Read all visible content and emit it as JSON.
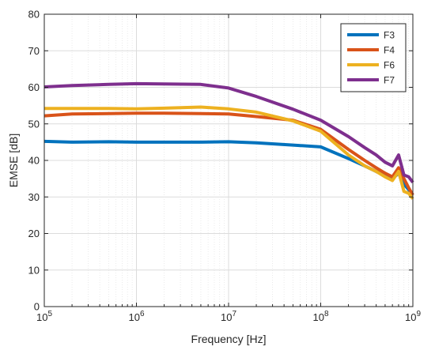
{
  "chart_data": {
    "type": "line",
    "title": "",
    "xlabel": "Frequency [Hz]",
    "ylabel": "EMSE [dB]",
    "xscale": "log",
    "xlim": [
      100000,
      1000000000
    ],
    "ylim": [
      0,
      80
    ],
    "grid": true,
    "legend_position": "top-right",
    "x_ticks": [
      {
        "value": 100000,
        "base": "10",
        "exp": "5"
      },
      {
        "value": 1000000,
        "base": "10",
        "exp": "6"
      },
      {
        "value": 10000000,
        "base": "10",
        "exp": "7"
      },
      {
        "value": 100000000,
        "base": "10",
        "exp": "8"
      },
      {
        "value": 1000000000,
        "base": "10",
        "exp": "9"
      }
    ],
    "y_ticks": [
      0,
      10,
      20,
      30,
      40,
      50,
      60,
      70,
      80
    ],
    "x": [
      100000,
      200000,
      500000,
      1000000,
      2000000,
      5000000,
      10000000,
      20000000,
      50000000,
      100000000,
      200000000,
      300000000,
      400000000,
      500000000,
      600000000,
      700000000,
      800000000,
      900000000,
      1000000000
    ],
    "series": [
      {
        "name": "F3",
        "color": "#0072BD",
        "values": [
          45.2,
          45.0,
          45.1,
          45.0,
          45.0,
          45.0,
          45.1,
          44.8,
          44.2,
          43.7,
          40.5,
          38.5,
          37.0,
          35.8,
          35.0,
          36.5,
          33.5,
          32.0,
          30.5
        ]
      },
      {
        "name": "F4",
        "color": "#D95319",
        "values": [
          52.2,
          52.7,
          52.8,
          52.9,
          52.9,
          52.8,
          52.7,
          52.0,
          51.0,
          48.5,
          43.0,
          40.0,
          38.0,
          36.5,
          35.5,
          38.0,
          35.0,
          32.5,
          30.5
        ]
      },
      {
        "name": "F6",
        "color": "#EDB120",
        "values": [
          54.2,
          54.2,
          54.2,
          54.1,
          54.3,
          54.6,
          54.1,
          53.2,
          50.8,
          48.0,
          41.5,
          38.5,
          37.0,
          35.5,
          34.5,
          37.0,
          31.5,
          31.0,
          29.5
        ]
      },
      {
        "name": "F7",
        "color": "#7E2F8E",
        "values": [
          60.1,
          60.5,
          60.8,
          61.0,
          60.9,
          60.8,
          59.8,
          57.5,
          54.0,
          51.0,
          46.5,
          43.5,
          41.5,
          39.5,
          38.5,
          41.5,
          36.0,
          35.5,
          34.0
        ]
      }
    ]
  }
}
